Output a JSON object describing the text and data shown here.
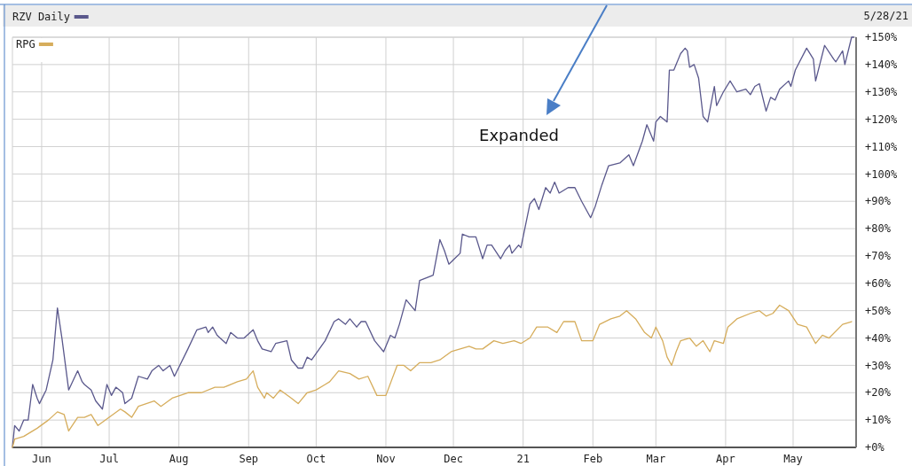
{
  "chart_data": {
    "type": "line",
    "annotations": [
      "Expanded",
      "5/28/21"
    ],
    "xlim": [
      "2020-05-19",
      "2021-05-29"
    ],
    "xticks": [
      {
        "value": "2020-06-01",
        "label": "Jun"
      },
      {
        "value": "2020-07-01",
        "label": "Jul"
      },
      {
        "value": "2020-08-01",
        "label": "Aug"
      },
      {
        "value": "2020-09-01",
        "label": "Sep"
      },
      {
        "value": "2020-10-01",
        "label": "Oct"
      },
      {
        "value": "2020-11-01",
        "label": "Nov"
      },
      {
        "value": "2020-12-01",
        "label": "Dec"
      },
      {
        "value": "2021-01-01",
        "label": "21"
      },
      {
        "value": "2021-02-01",
        "label": "Feb"
      },
      {
        "value": "2021-03-01",
        "label": "Mar"
      },
      {
        "value": "2021-04-01",
        "label": "Apr"
      },
      {
        "value": "2021-05-01",
        "label": "May"
      }
    ],
    "ylim": [
      0,
      150
    ],
    "yticks": [
      {
        "value": 0,
        "label": "+0%"
      },
      {
        "value": 10,
        "label": "+10%"
      },
      {
        "value": 20,
        "label": "+20%"
      },
      {
        "value": 30,
        "label": "+30%"
      },
      {
        "value": 40,
        "label": "+40%"
      },
      {
        "value": 50,
        "label": "+50%"
      },
      {
        "value": 60,
        "label": "+60%"
      },
      {
        "value": 70,
        "label": "+70%"
      },
      {
        "value": 80,
        "label": "+80%"
      },
      {
        "value": 90,
        "label": "+90%"
      },
      {
        "value": 100,
        "label": "+100%"
      },
      {
        "value": 110,
        "label": "+110%"
      },
      {
        "value": 120,
        "label": "+120%"
      },
      {
        "value": 130,
        "label": "+130%"
      },
      {
        "value": 140,
        "label": "+140%"
      },
      {
        "value": 150,
        "label": "+150%"
      }
    ],
    "grid": true,
    "legend": "top left",
    "series": [
      {
        "name": "RZV Daily",
        "color": "#5a588c",
        "x": [
          "2020-05-19",
          "2020-05-20",
          "2020-05-22",
          "2020-05-24",
          "2020-05-26",
          "2020-05-28",
          "2020-05-30",
          "2020-05-31",
          "2020-06-03",
          "2020-06-06",
          "2020-06-08",
          "2020-06-10",
          "2020-06-13",
          "2020-06-17",
          "2020-06-19",
          "2020-06-20",
          "2020-06-23",
          "2020-06-25",
          "2020-06-28",
          "2020-06-30",
          "2020-07-02",
          "2020-07-04",
          "2020-07-07",
          "2020-07-08",
          "2020-07-11",
          "2020-07-14",
          "2020-07-18",
          "2020-07-20",
          "2020-07-23",
          "2020-07-25",
          "2020-07-28",
          "2020-07-30",
          "2020-08-05",
          "2020-08-09",
          "2020-08-13",
          "2020-08-14",
          "2020-08-16",
          "2020-08-18",
          "2020-08-22",
          "2020-08-24",
          "2020-08-27",
          "2020-08-30",
          "2020-09-03",
          "2020-09-05",
          "2020-09-07",
          "2020-09-11",
          "2020-09-13",
          "2020-09-18",
          "2020-09-20",
          "2020-09-23",
          "2020-09-25",
          "2020-09-27",
          "2020-09-29",
          "2020-10-05",
          "2020-10-09",
          "2020-10-11",
          "2020-10-14",
          "2020-10-16",
          "2020-10-19",
          "2020-10-21",
          "2020-10-23",
          "2020-10-27",
          "2020-10-29",
          "2020-10-31",
          "2020-11-03",
          "2020-11-05",
          "2020-11-07",
          "2020-11-10",
          "2020-11-14",
          "2020-11-16",
          "2020-11-22",
          "2020-11-25",
          "2020-11-27",
          "2020-11-29",
          "2020-12-04",
          "2020-12-05",
          "2020-12-08",
          "2020-12-11",
          "2020-12-14",
          "2020-12-16",
          "2020-12-18",
          "2020-12-22",
          "2020-12-24",
          "2020-12-26",
          "2020-12-27",
          "2020-12-30",
          "2020-12-31",
          "2021-01-04",
          "2021-01-06",
          "2021-01-08",
          "2021-01-11",
          "2021-01-13",
          "2021-01-15",
          "2021-01-17",
          "2021-01-21",
          "2021-01-24",
          "2021-01-27",
          "2021-01-31",
          "2021-02-02",
          "2021-02-05",
          "2021-02-08",
          "2021-02-13",
          "2021-02-17",
          "2021-02-19",
          "2021-02-23",
          "2021-02-25",
          "2021-02-28",
          "2021-03-01",
          "2021-03-03",
          "2021-03-06",
          "2021-03-07",
          "2021-03-09",
          "2021-03-12",
          "2021-03-14",
          "2021-03-15",
          "2021-03-16",
          "2021-03-18",
          "2021-03-20",
          "2021-03-22",
          "2021-03-24",
          "2021-03-27",
          "2021-03-28",
          "2021-03-31",
          "2021-04-03",
          "2021-04-06",
          "2021-04-10",
          "2021-04-12",
          "2021-04-14",
          "2021-04-16",
          "2021-04-19",
          "2021-04-21",
          "2021-04-23",
          "2021-04-25",
          "2021-04-29",
          "2021-04-30",
          "2021-05-02",
          "2021-05-07",
          "2021-05-10",
          "2021-05-11",
          "2021-05-15",
          "2021-05-19",
          "2021-05-20",
          "2021-05-23",
          "2021-05-24",
          "2021-05-27",
          "2021-05-28"
        ],
        "values": [
          0,
          8,
          6,
          10,
          10,
          23,
          18,
          16,
          21,
          32,
          51,
          40,
          21,
          28,
          24,
          23,
          21,
          17,
          14,
          23,
          19,
          22,
          20,
          16,
          18,
          26,
          25,
          28,
          30,
          28,
          30,
          26,
          36,
          43,
          44,
          42,
          44,
          41,
          38,
          42,
          40,
          40,
          43,
          39,
          36,
          35,
          38,
          39,
          32,
          29,
          29,
          33,
          32,
          39,
          46,
          47,
          45,
          47,
          44,
          46,
          46,
          39,
          37,
          35,
          41,
          40,
          45,
          54,
          50,
          61,
          63,
          76,
          72,
          67,
          71,
          78,
          77,
          77,
          69,
          74,
          74,
          69,
          72,
          74,
          71,
          74,
          73,
          89,
          91,
          87,
          95,
          93,
          97,
          93,
          95,
          95,
          90,
          84,
          88,
          96,
          103,
          104,
          107,
          103,
          112,
          118,
          112,
          119,
          121,
          119,
          138,
          138,
          144,
          146,
          145,
          139,
          140,
          135,
          121,
          119,
          132,
          125,
          130,
          134,
          130,
          131,
          129,
          132,
          133,
          123,
          128,
          127,
          131,
          134,
          132,
          138,
          146,
          142,
          134,
          147,
          142,
          141,
          145,
          140,
          150,
          150
        ]
      },
      {
        "name": "RPG",
        "color": "#d6ad5c",
        "x": [
          "2020-05-19",
          "2020-05-20",
          "2020-05-24",
          "2020-05-30",
          "2020-06-04",
          "2020-06-08",
          "2020-06-11",
          "2020-06-13",
          "2020-06-17",
          "2020-06-20",
          "2020-06-23",
          "2020-06-26",
          "2020-07-01",
          "2020-07-06",
          "2020-07-08",
          "2020-07-11",
          "2020-07-14",
          "2020-07-21",
          "2020-07-24",
          "2020-07-29",
          "2020-08-05",
          "2020-08-11",
          "2020-08-17",
          "2020-08-21",
          "2020-08-27",
          "2020-08-31",
          "2020-09-03",
          "2020-09-05",
          "2020-09-08",
          "2020-09-09",
          "2020-09-12",
          "2020-09-15",
          "2020-09-20",
          "2020-09-23",
          "2020-09-27",
          "2020-10-01",
          "2020-10-05",
          "2020-10-07",
          "2020-10-11",
          "2020-10-16",
          "2020-10-20",
          "2020-10-24",
          "2020-10-28",
          "2020-11-01",
          "2020-11-06",
          "2020-11-09",
          "2020-11-12",
          "2020-11-16",
          "2020-11-21",
          "2020-11-25",
          "2020-11-30",
          "2020-12-08",
          "2020-12-11",
          "2020-12-14",
          "2020-12-19",
          "2020-12-23",
          "2020-12-28",
          "2020-12-31",
          "2021-01-04",
          "2021-01-07",
          "2021-01-12",
          "2021-01-16",
          "2021-01-19",
          "2021-01-24",
          "2021-01-27",
          "2021-02-01",
          "2021-02-04",
          "2021-02-09",
          "2021-02-13",
          "2021-02-16",
          "2021-02-20",
          "2021-02-24",
          "2021-02-27",
          "2021-03-01",
          "2021-03-04",
          "2021-03-06",
          "2021-03-08",
          "2021-03-10",
          "2021-03-12",
          "2021-03-16",
          "2021-03-19",
          "2021-03-22",
          "2021-03-25",
          "2021-03-27",
          "2021-03-31",
          "2021-04-02",
          "2021-04-06",
          "2021-04-12",
          "2021-04-16",
          "2021-04-19",
          "2021-04-22",
          "2021-04-25",
          "2021-04-29",
          "2021-05-03",
          "2021-05-07",
          "2021-05-09",
          "2021-05-11",
          "2021-05-14",
          "2021-05-17",
          "2021-05-23",
          "2021-05-27"
        ],
        "values": [
          0,
          3,
          4,
          7,
          10,
          13,
          12,
          6,
          11,
          11,
          12,
          8,
          11,
          14,
          13,
          11,
          15,
          17,
          15,
          18,
          20,
          20,
          22,
          22,
          24,
          25,
          28,
          22,
          18,
          20,
          18,
          21,
          18,
          16,
          20,
          21,
          23,
          24,
          28,
          27,
          25,
          26,
          19,
          19,
          30,
          30,
          28,
          31,
          31,
          32,
          35,
          37,
          36,
          36,
          39,
          38,
          39,
          38,
          40,
          44,
          44,
          42,
          46,
          46,
          39,
          39,
          45,
          47,
          48,
          50,
          47,
          42,
          40,
          44,
          39,
          33,
          30,
          35,
          39,
          40,
          37,
          39,
          35,
          39,
          38,
          44,
          47,
          49,
          50,
          48,
          49,
          52,
          50,
          45,
          44,
          41,
          38,
          41,
          40,
          45,
          46
        ]
      }
    ]
  }
}
